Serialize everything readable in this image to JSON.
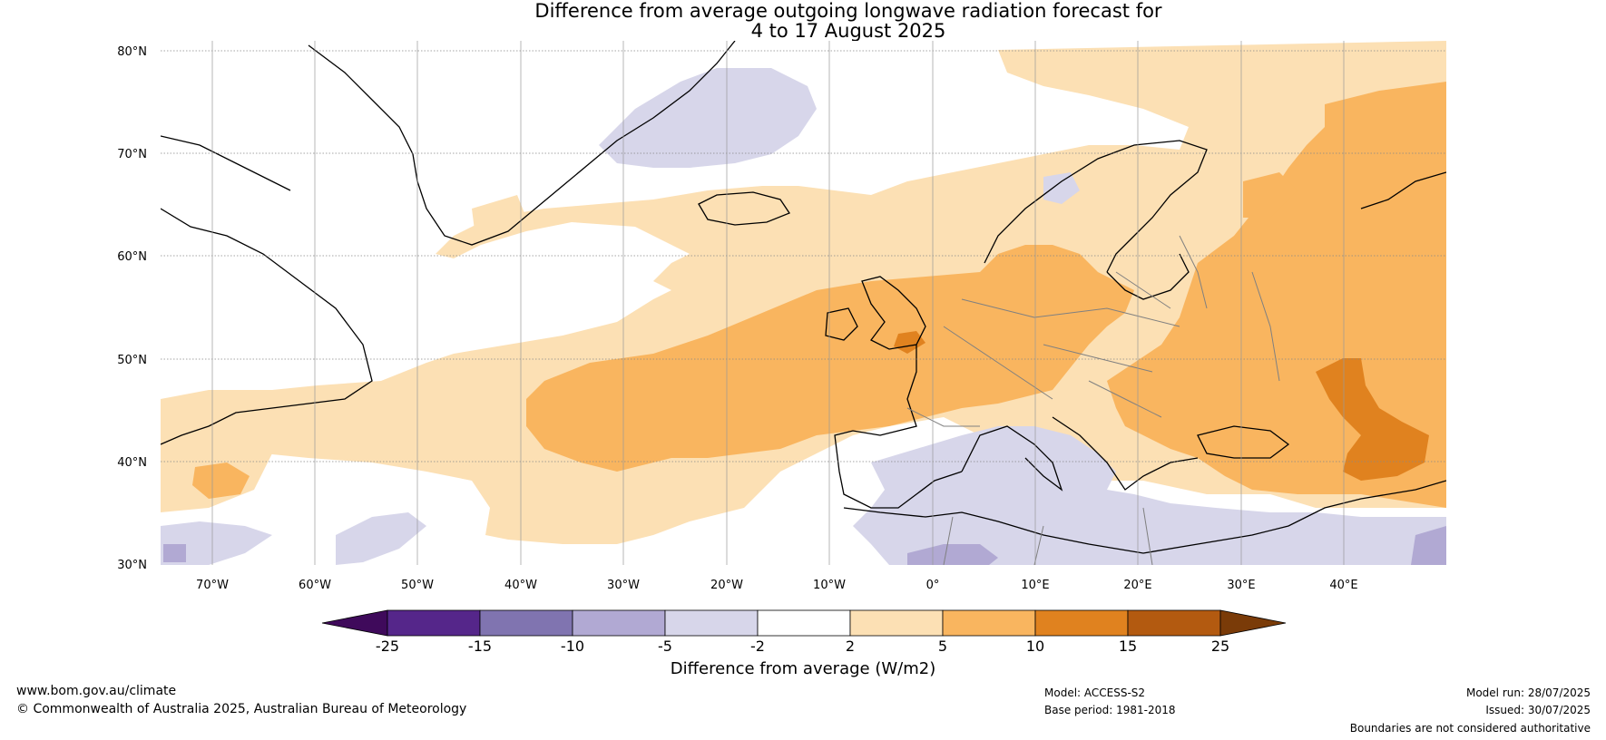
{
  "title": {
    "line1": "Difference from average outgoing longwave radiation forecast for",
    "line2": "4 to 17 August 2025"
  },
  "map": {
    "lat_labels": [
      "80°N",
      "70°N",
      "60°N",
      "50°N",
      "40°N",
      "30°N"
    ],
    "lon_labels": [
      "70°W",
      "60°W",
      "50°W",
      "40°W",
      "30°W",
      "20°W",
      "10°W",
      "0°",
      "10°E",
      "20°E",
      "30°E",
      "40°E"
    ],
    "colors": {
      "neutral": "#ffffff",
      "pos_2_5": "#fce0b4",
      "pos_5_10": "#f9b55f",
      "pos_10_15": "#e0821f",
      "neg_2_5": "#d7d6ea",
      "neg_5_10": "#b1a9d3",
      "coast": "#000000",
      "border": "#808080"
    }
  },
  "colorbar": {
    "ticks": [
      "-25",
      "-15",
      "-10",
      "-5",
      "-2",
      "2",
      "5",
      "10",
      "15",
      "25"
    ],
    "colors": [
      "#3f0a5b",
      "#55268a",
      "#8074b0",
      "#b1a9d3",
      "#d7d6ea",
      "#ffffff",
      "#fce0b4",
      "#f9b55f",
      "#e0821f",
      "#b35a10",
      "#7a3b08"
    ],
    "label": "Difference from average (W/m2)"
  },
  "footer": {
    "website": "www.bom.gov.au/climate",
    "copyright": "© Commonwealth of Australia 2025, Australian Bureau of Meteorology",
    "model": "Model: ACCESS-S2",
    "base_period": "Base period: 1981-2018",
    "model_run": "Model run: 28/07/2025",
    "issued": "Issued: 30/07/2025",
    "disclaimer": "Boundaries are not considered authoritative"
  }
}
